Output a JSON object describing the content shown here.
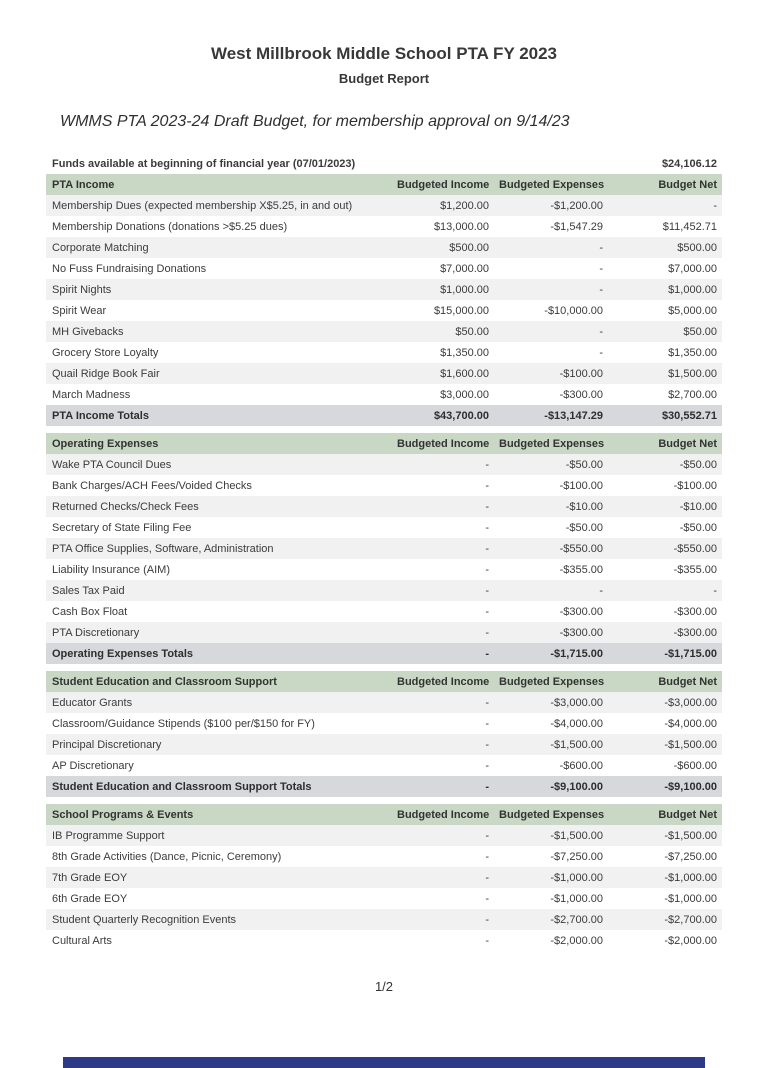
{
  "page": {
    "title": "West Millbrook Middle School PTA FY 2023",
    "subtitle": "Budget Report",
    "note": "WMMS PTA 2023-24 Draft Budget, for membership approval on 9/14/23",
    "page_indicator": "1/2"
  },
  "table": {
    "funds_row": {
      "label": "Funds available at beginning of financial year (07/01/2023)",
      "value": "$24,106.12"
    },
    "column_headers": [
      "Budgeted Income",
      "Budgeted Expenses",
      "Budget Net"
    ],
    "sections": [
      {
        "title": "PTA Income",
        "rows": [
          {
            "label": "Membership Dues (expected membership X$5.25, in and out)",
            "income": "$1,200.00",
            "expenses": "-$1,200.00",
            "net": "-"
          },
          {
            "label": "Membership Donations (donations >$5.25 dues)",
            "income": "$13,000.00",
            "expenses": "-$1,547.29",
            "net": "$11,452.71"
          },
          {
            "label": "Corporate Matching",
            "income": "$500.00",
            "expenses": "-",
            "net": "$500.00"
          },
          {
            "label": "No Fuss Fundraising Donations",
            "income": "$7,000.00",
            "expenses": "-",
            "net": "$7,000.00"
          },
          {
            "label": "Spirit Nights",
            "income": "$1,000.00",
            "expenses": "-",
            "net": "$1,000.00"
          },
          {
            "label": "Spirit Wear",
            "income": "$15,000.00",
            "expenses": "-$10,000.00",
            "net": "$5,000.00"
          },
          {
            "label": "MH Givebacks",
            "income": "$50.00",
            "expenses": "-",
            "net": "$50.00"
          },
          {
            "label": "Grocery Store Loyalty",
            "income": "$1,350.00",
            "expenses": "-",
            "net": "$1,350.00"
          },
          {
            "label": "Quail Ridge Book Fair",
            "income": "$1,600.00",
            "expenses": "-$100.00",
            "net": "$1,500.00"
          },
          {
            "label": "March Madness",
            "income": "$3,000.00",
            "expenses": "-$300.00",
            "net": "$2,700.00"
          }
        ],
        "totals": {
          "label": "PTA Income Totals",
          "income": "$43,700.00",
          "expenses": "-$13,147.29",
          "net": "$30,552.71"
        }
      },
      {
        "title": "Operating Expenses",
        "rows": [
          {
            "label": "Wake PTA Council Dues",
            "income": "-",
            "expenses": "-$50.00",
            "net": "-$50.00"
          },
          {
            "label": "Bank Charges/ACH Fees/Voided Checks",
            "income": "-",
            "expenses": "-$100.00",
            "net": "-$100.00"
          },
          {
            "label": "Returned Checks/Check Fees",
            "income": "-",
            "expenses": "-$10.00",
            "net": "-$10.00"
          },
          {
            "label": "Secretary of State Filing Fee",
            "income": "-",
            "expenses": "-$50.00",
            "net": "-$50.00"
          },
          {
            "label": "PTA Office Supplies, Software, Administration",
            "income": "-",
            "expenses": "-$550.00",
            "net": "-$550.00"
          },
          {
            "label": "Liability Insurance (AIM)",
            "income": "-",
            "expenses": "-$355.00",
            "net": "-$355.00"
          },
          {
            "label": "Sales Tax Paid",
            "income": "-",
            "expenses": "-",
            "net": "-"
          },
          {
            "label": "Cash Box Float",
            "income": "-",
            "expenses": "-$300.00",
            "net": "-$300.00"
          },
          {
            "label": "PTA Discretionary",
            "income": "-",
            "expenses": "-$300.00",
            "net": "-$300.00"
          }
        ],
        "totals": {
          "label": "Operating Expenses Totals",
          "income": "-",
          "expenses": "-$1,715.00",
          "net": "-$1,715.00"
        }
      },
      {
        "title": "Student Education and Classroom Support",
        "rows": [
          {
            "label": "Educator Grants",
            "income": "-",
            "expenses": "-$3,000.00",
            "net": "-$3,000.00"
          },
          {
            "label": "Classroom/Guidance Stipends ($100 per/$150 for FY)",
            "income": "-",
            "expenses": "-$4,000.00",
            "net": "-$4,000.00"
          },
          {
            "label": "Principal Discretionary",
            "income": "-",
            "expenses": "-$1,500.00",
            "net": "-$1,500.00"
          },
          {
            "label": "AP Discretionary",
            "income": "-",
            "expenses": "-$600.00",
            "net": "-$600.00"
          }
        ],
        "totals": {
          "label": "Student Education and Classroom Support Totals",
          "income": "-",
          "expenses": "-$9,100.00",
          "net": "-$9,100.00"
        }
      },
      {
        "title": "School Programs & Events",
        "rows": [
          {
            "label": "IB Programme Support",
            "income": "-",
            "expenses": "-$1,500.00",
            "net": "-$1,500.00"
          },
          {
            "label": "8th Grade Activities (Dance, Picnic, Ceremony)",
            "income": "-",
            "expenses": "-$7,250.00",
            "net": "-$7,250.00"
          },
          {
            "label": "7th Grade EOY",
            "income": "-",
            "expenses": "-$1,000.00",
            "net": "-$1,000.00"
          },
          {
            "label": "6th Grade EOY",
            "income": "-",
            "expenses": "-$1,000.00",
            "net": "-$1,000.00"
          },
          {
            "label": "Student Quarterly Recognition Events",
            "income": "-",
            "expenses": "-$2,700.00",
            "net": "-$2,700.00"
          },
          {
            "label": "Cultural Arts",
            "income": "-",
            "expenses": "-$2,000.00",
            "net": "-$2,000.00"
          }
        ]
      }
    ]
  },
  "colors": {
    "section_header_bg": "#c9d8c5",
    "totals_row_bg": "#d6d8db",
    "stripe_row_bg": "#f1f1f1",
    "bottom_bar": "#2d3a85",
    "text": "#3b3b3b"
  }
}
